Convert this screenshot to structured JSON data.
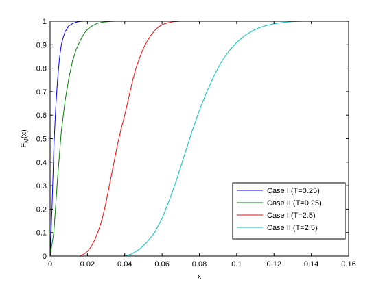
{
  "chart_data": {
    "type": "line",
    "title": "",
    "xlabel": "x",
    "ylabel_main": "F",
    "ylabel_sub": "M",
    "ylabel_tail": "(x)",
    "xlim": [
      0,
      0.16
    ],
    "ylim": [
      0,
      1
    ],
    "xticks": [
      0,
      0.02,
      0.04,
      0.06,
      0.08,
      0.1,
      0.12,
      0.14,
      0.16
    ],
    "xtick_labels": [
      "0",
      "0.02",
      "0.04",
      "0.06",
      "0.08",
      "0.1",
      "0.12",
      "0.14",
      "0.16"
    ],
    "yticks": [
      0,
      0.1,
      0.2,
      0.3,
      0.4,
      0.5,
      0.6,
      0.7,
      0.8,
      0.9,
      1
    ],
    "ytick_labels": [
      "0",
      "0.1",
      "0.2",
      "0.3",
      "0.4",
      "0.5",
      "0.6",
      "0.7",
      "0.8",
      "0.9",
      "1"
    ],
    "grid": false,
    "legend_position": "bottom-right",
    "series": [
      {
        "name": "Case I (T=0.25)",
        "color": "#0000ff",
        "x": [
          0,
          0.001,
          0.002,
          0.003,
          0.004,
          0.005,
          0.006,
          0.007,
          0.008,
          0.01,
          0.012,
          0.014,
          0.016,
          0.018,
          0.02
        ],
        "y": [
          0,
          0.2,
          0.46,
          0.63,
          0.75,
          0.84,
          0.9,
          0.93,
          0.955,
          0.98,
          0.99,
          0.996,
          0.999,
          1,
          1
        ]
      },
      {
        "name": "Case II (T=0.25)",
        "color": "#008000",
        "x": [
          0,
          0.002,
          0.004,
          0.006,
          0.008,
          0.01,
          0.012,
          0.014,
          0.016,
          0.018,
          0.02,
          0.022,
          0.025,
          0.028,
          0.032,
          0.035
        ],
        "y": [
          0,
          0.1,
          0.33,
          0.53,
          0.66,
          0.755,
          0.83,
          0.88,
          0.915,
          0.945,
          0.965,
          0.978,
          0.99,
          0.996,
          0.999,
          1
        ]
      },
      {
        "name": "Case I (T=2.5)",
        "color": "#ff0000",
        "x": [
          0,
          0.016,
          0.018,
          0.02,
          0.022,
          0.024,
          0.026,
          0.028,
          0.03,
          0.032,
          0.034,
          0.036,
          0.038,
          0.04,
          0.042,
          0.044,
          0.046,
          0.048,
          0.05,
          0.052,
          0.054,
          0.056,
          0.058,
          0.06,
          0.063,
          0.066,
          0.07
        ],
        "y": [
          0,
          0,
          0.008,
          0.02,
          0.04,
          0.07,
          0.11,
          0.16,
          0.23,
          0.31,
          0.39,
          0.47,
          0.54,
          0.6,
          0.67,
          0.74,
          0.8,
          0.845,
          0.885,
          0.915,
          0.94,
          0.96,
          0.975,
          0.985,
          0.993,
          0.998,
          1
        ]
      },
      {
        "name": "Case II (T=2.5)",
        "color": "#00bfbf",
        "x": [
          0,
          0.04,
          0.044,
          0.048,
          0.052,
          0.056,
          0.06,
          0.064,
          0.068,
          0.072,
          0.076,
          0.08,
          0.084,
          0.088,
          0.092,
          0.096,
          0.1,
          0.104,
          0.108,
          0.112,
          0.116,
          0.12,
          0.124,
          0.128,
          0.132,
          0.136,
          0.14
        ],
        "y": [
          0,
          0,
          0.01,
          0.03,
          0.06,
          0.1,
          0.16,
          0.24,
          0.33,
          0.43,
          0.53,
          0.62,
          0.7,
          0.77,
          0.83,
          0.875,
          0.91,
          0.937,
          0.957,
          0.972,
          0.982,
          0.989,
          0.994,
          0.997,
          0.999,
          1,
          1
        ]
      }
    ]
  }
}
